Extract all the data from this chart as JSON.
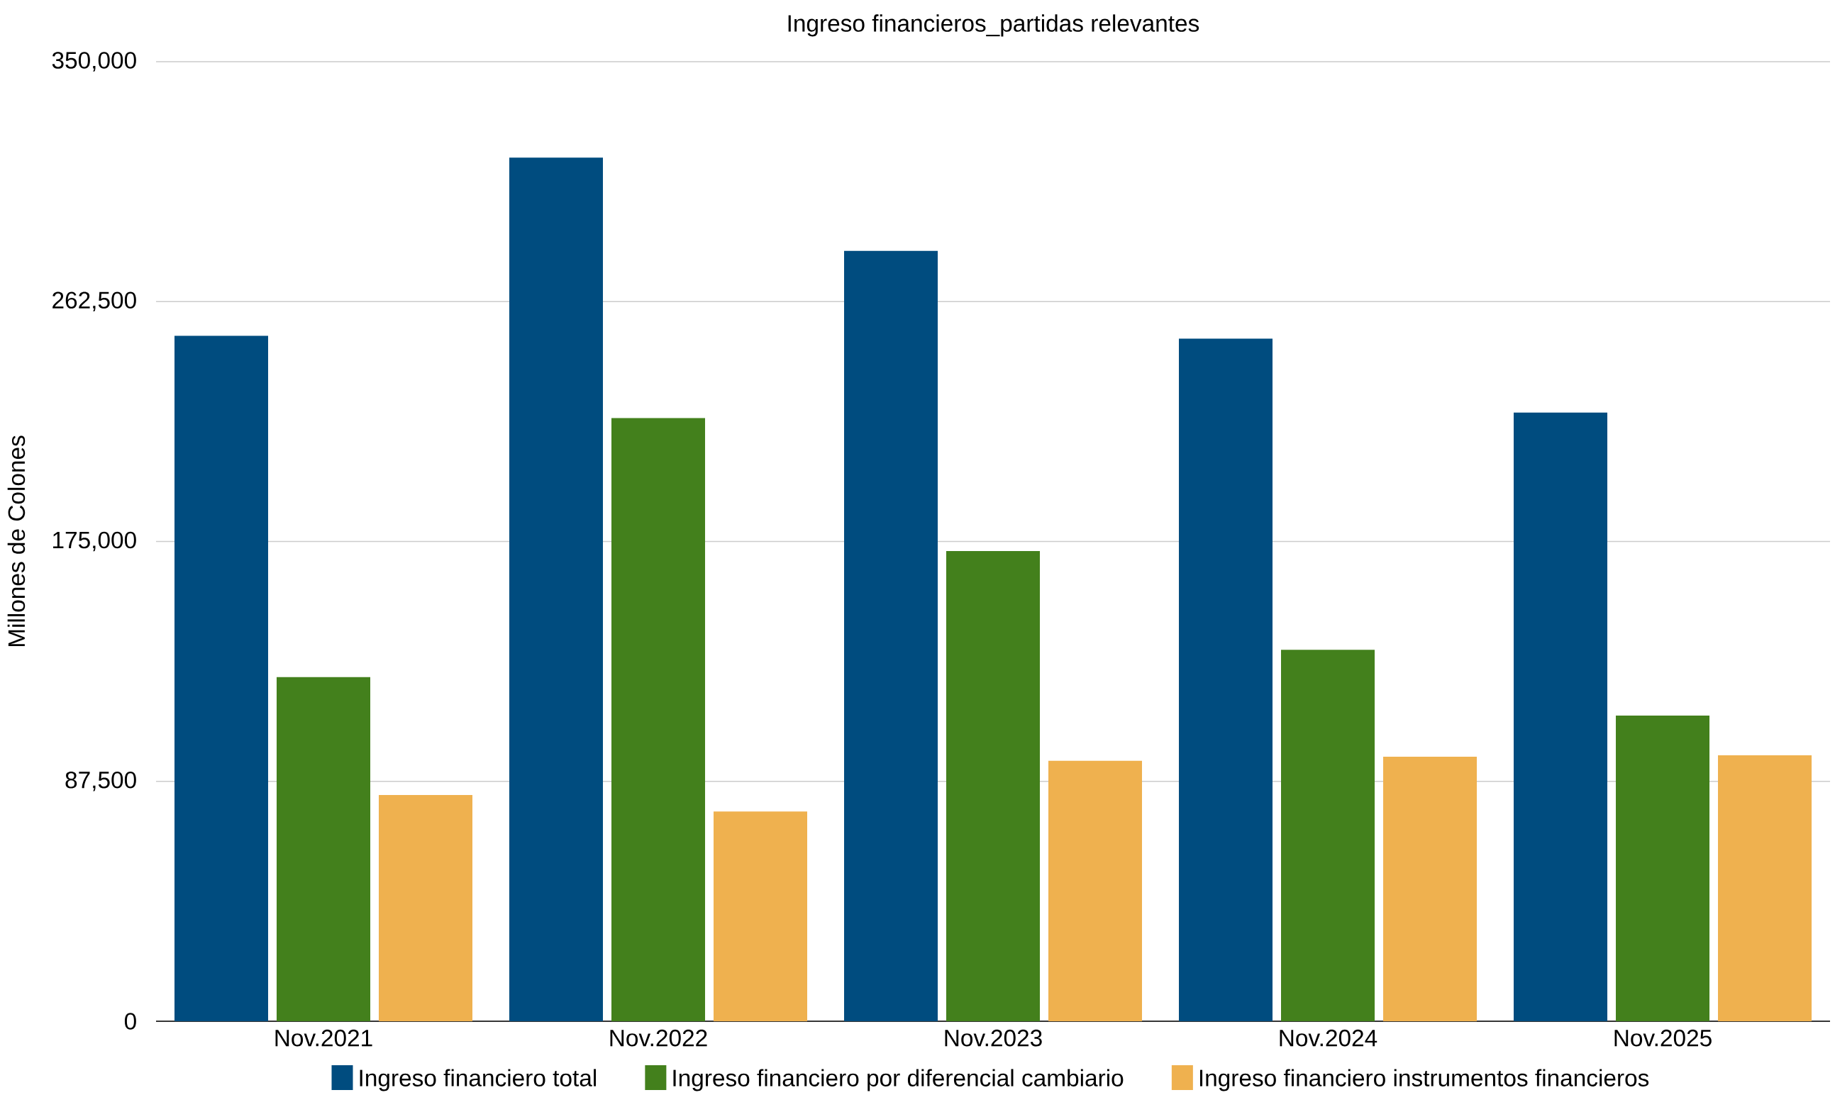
{
  "chart_data": {
    "type": "bar",
    "title": "Ingreso financieros_partidas relevantes",
    "ylabel": "Millones de Colones",
    "categories": [
      "Nov.2021",
      "Nov.2022",
      "Nov.2023",
      "Nov.2024",
      "Nov.2025"
    ],
    "series": [
      {
        "name": "Ingreso financiero total",
        "color": "#004c7f",
        "values": [
          250000,
          315000,
          281000,
          249000,
          222000
        ]
      },
      {
        "name": "Ingreso financiero por diferencial cambiario",
        "color": "#43801c",
        "values": [
          125500,
          220000,
          171500,
          135500,
          111500
        ]
      },
      {
        "name": "Ingreso financiero instrumentos financieros",
        "color": "#efb14f",
        "values": [
          82500,
          76500,
          95000,
          96500,
          97000
        ]
      }
    ],
    "ylim": [
      0,
      350000
    ],
    "yticks": [
      {
        "value": 0,
        "label": "0"
      },
      {
        "value": 87500,
        "label": "87,500"
      },
      {
        "value": 175000,
        "label": "175,000"
      },
      {
        "value": 262500,
        "label": "262,500"
      },
      {
        "value": 350000,
        "label": "350,000"
      }
    ],
    "grid": "y",
    "legend": "bottom"
  }
}
